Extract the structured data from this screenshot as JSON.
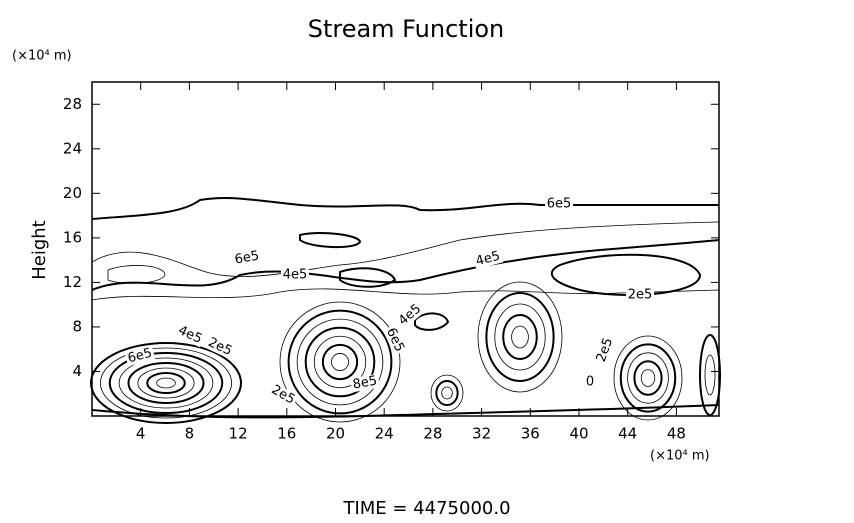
{
  "chart_data": {
    "type": "contour",
    "title": "Stream Function",
    "y_unit": "(×10⁴ m)",
    "x_unit": "(×10⁴ m)",
    "y_label": "Height",
    "footer": "TIME  =  4475000.0",
    "xlim": [
      0,
      51.5
    ],
    "ylim": [
      0,
      30
    ],
    "xticks": [
      4,
      8,
      12,
      16,
      20,
      24,
      28,
      32,
      36,
      40,
      44,
      48
    ],
    "yticks": [
      4,
      8,
      12,
      16,
      20,
      24,
      28
    ],
    "contour_labels": [
      "6e5",
      "6e5",
      "4e5",
      "4e5",
      "2e5",
      "4e5",
      "2e5",
      "6e5",
      "6e5",
      "4e5",
      "8e5",
      "2e5",
      "2e5",
      "0"
    ]
  }
}
